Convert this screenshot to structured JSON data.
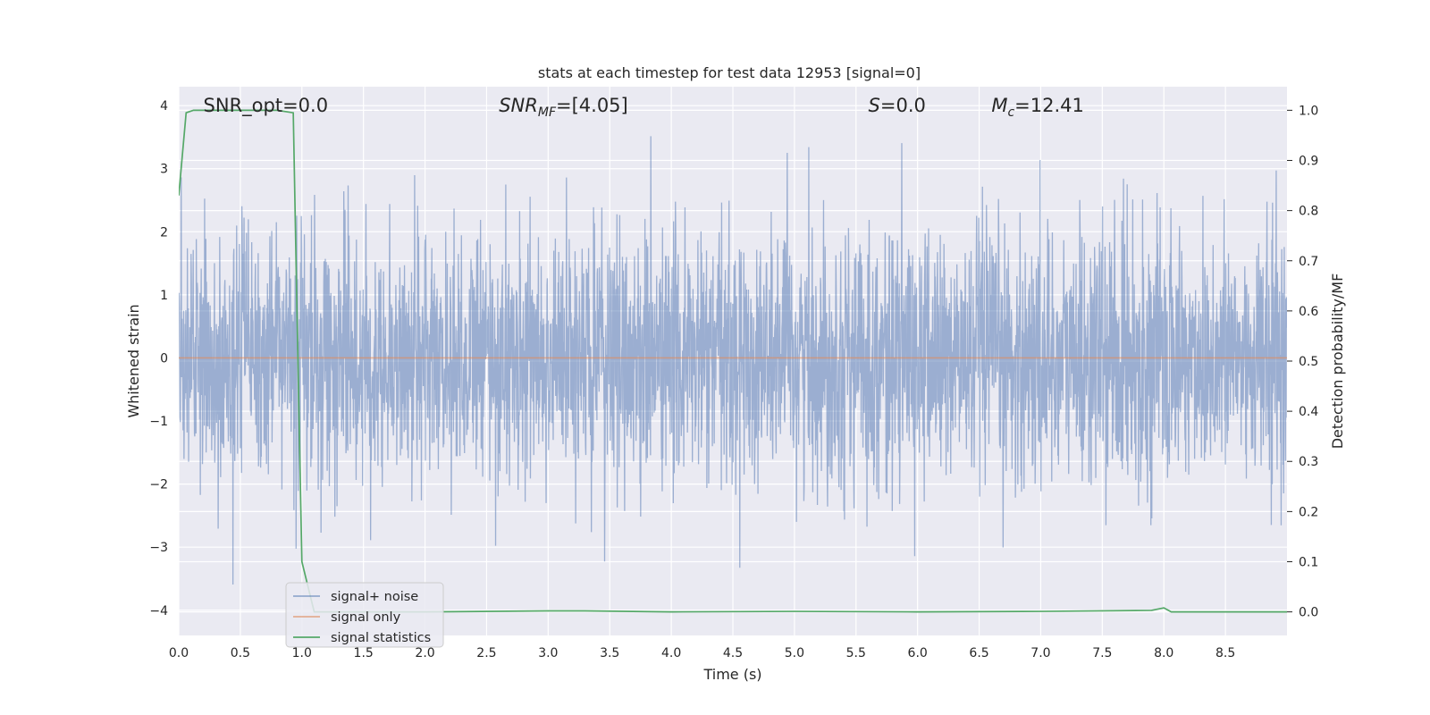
{
  "chart_data": {
    "type": "line",
    "title": "stats at each timestep for test data 12953 [signal=0]",
    "xlabel": "Time (s)",
    "ylabel": "Whitened strain",
    "y2label": "Detection probability/MF",
    "xlim": [
      0.0,
      9.0
    ],
    "ylim": [
      -4.4,
      4.3
    ],
    "y2lim": [
      -0.047,
      1.047
    ],
    "xticks": [
      "0.0",
      "0.5",
      "1.0",
      "1.5",
      "2.0",
      "2.5",
      "3.0",
      "3.5",
      "4.0",
      "4.5",
      "5.0",
      "5.5",
      "6.0",
      "6.5",
      "7.0",
      "7.5",
      "8.0",
      "8.5"
    ],
    "yticks": [
      "−4",
      "−3",
      "−2",
      "−1",
      "0",
      "1",
      "2",
      "3",
      "4"
    ],
    "y2ticks": [
      "0.0",
      "0.1",
      "0.2",
      "0.3",
      "0.4",
      "0.5",
      "0.6",
      "0.7",
      "0.8",
      "0.9",
      "1.0"
    ],
    "grid": true,
    "legend_position": "lower-left",
    "annotations": [
      {
        "text": "SNR_opt=0.0",
        "x": 0.2,
        "y": 4.0
      },
      {
        "text": "SNR_MF=[4.05]",
        "x": 2.6,
        "y": 4.0
      },
      {
        "text": "S=0.0",
        "x": 5.6,
        "y": 4.0
      },
      {
        "text": "M_c=12.41",
        "x": 6.6,
        "y": 4.0
      }
    ],
    "series": [
      {
        "name": "signal+ noise",
        "color": "#4c72b0",
        "axis": "left",
        "kind": "noise",
        "amplitude_envelope": [
          -3.9,
          3.9
        ],
        "typical_std": 1.0
      },
      {
        "name": "signal only",
        "color": "#dd8452",
        "axis": "left",
        "x": [
          0.0,
          9.0
        ],
        "y": [
          0.0,
          0.0
        ]
      },
      {
        "name": "signal statistics",
        "color": "#55a868",
        "axis": "right",
        "x": [
          0.0,
          0.06,
          0.12,
          0.2,
          0.5,
          0.8,
          0.93,
          0.96,
          1.0,
          1.1,
          2.0,
          3.0,
          3.3,
          4.0,
          5.0,
          6.0,
          7.0,
          7.9,
          8.0,
          8.06,
          8.5,
          9.0
        ],
        "y": [
          0.83,
          0.995,
          1.0,
          1.0,
          1.0,
          1.0,
          0.995,
          0.6,
          0.1,
          0.0,
          0.0,
          0.002,
          0.002,
          0.0,
          0.001,
          0.0,
          0.001,
          0.003,
          0.008,
          0.0,
          0.0,
          0.0
        ]
      }
    ]
  }
}
